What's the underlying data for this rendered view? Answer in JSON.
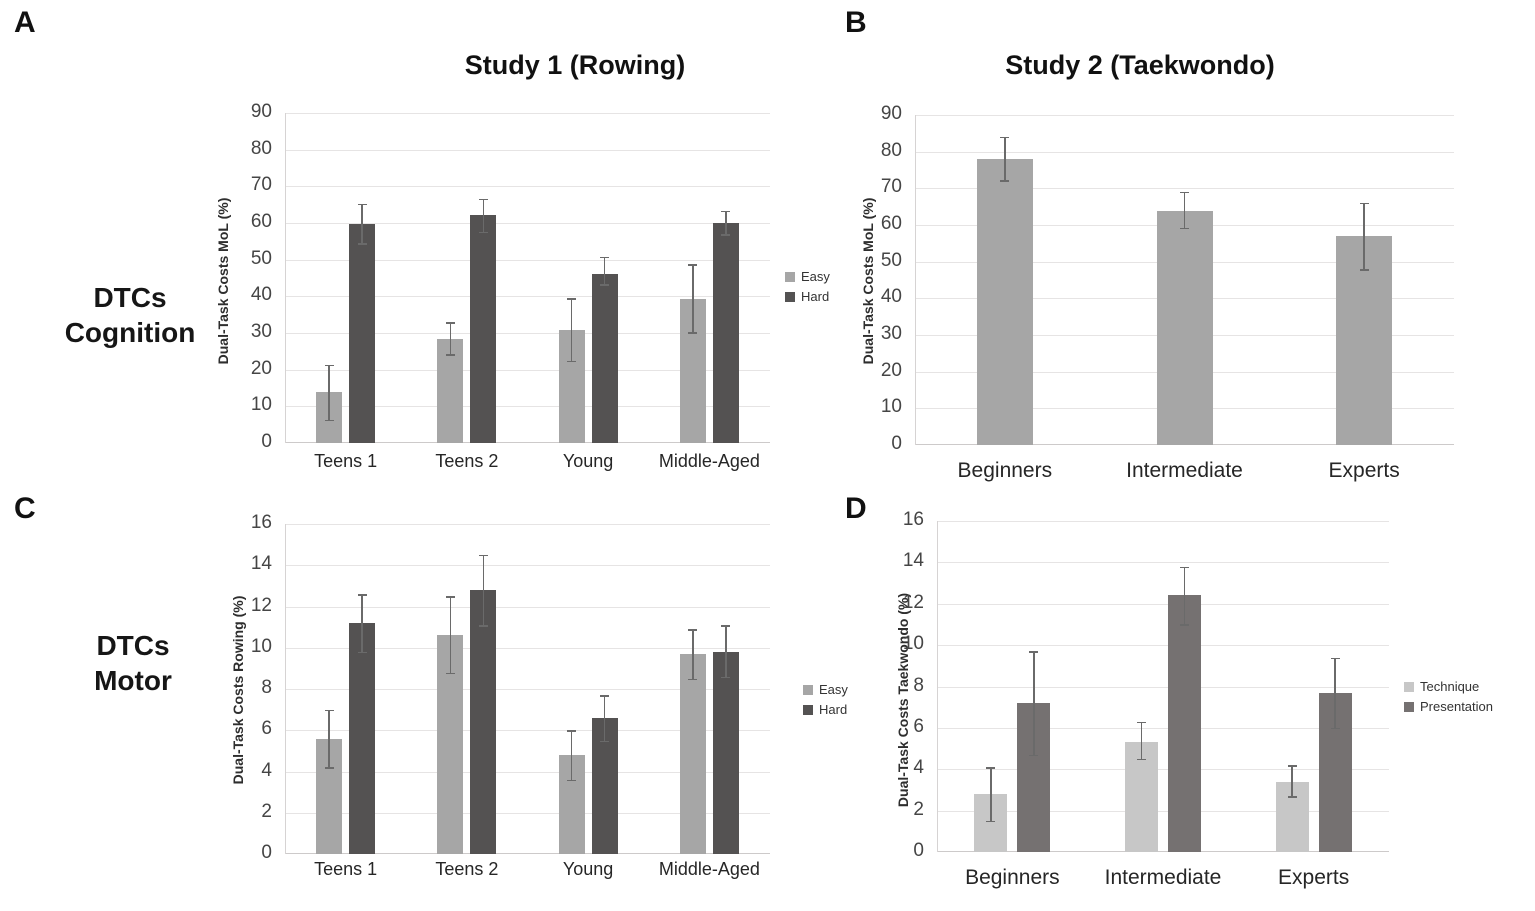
{
  "figure": {
    "background": "#ffffff",
    "row_labels": [
      {
        "line1": "DTCs",
        "line2": "Cognition"
      },
      {
        "line1": "DTCs",
        "line2": "Motor"
      }
    ]
  },
  "colors": {
    "easy": "#a6a6a6",
    "hard": "#545252",
    "technique": "#c7c7c7",
    "presentation": "#757171",
    "single_series": "#a6a6a6",
    "gridline": "#e6e4e4",
    "axis": "#cdcaca",
    "error_bar": "#6a6a6a"
  },
  "chart_data": [
    {
      "id": "A",
      "panel_letter": "A",
      "type": "bar",
      "title": "Study 1 (Rowing)",
      "xlabel": "",
      "ylabel": "Dual-Task Costs MoL (%)",
      "ylim": [
        0,
        90
      ],
      "ytick_step": 10,
      "grid": true,
      "legend_position": "right",
      "show_legend": true,
      "categories": [
        "Teens 1",
        "Teens 2",
        "Young",
        "Middle-Aged"
      ],
      "series": [
        {
          "name": "Easy",
          "color": "#a6a6a6",
          "values": [
            13.8,
            28.5,
            30.9,
            39.4
          ],
          "error_low": [
            6.4,
            24.2,
            22.4,
            30.2
          ],
          "error_high": [
            21.3,
            33.0,
            39.5,
            48.7
          ]
        },
        {
          "name": "Hard",
          "color": "#545252",
          "values": [
            59.8,
            62.1,
            46.0,
            60.1
          ],
          "error_low": [
            54.5,
            57.6,
            43.3,
            56.9
          ],
          "error_high": [
            65.3,
            66.6,
            50.8,
            63.4
          ]
        }
      ]
    },
    {
      "id": "B",
      "panel_letter": "B",
      "type": "bar",
      "title": "Study 2 (Taekwondo)",
      "xlabel": "",
      "ylabel": "Dual-Task Costs MoL (%)",
      "ylim": [
        0,
        90
      ],
      "ytick_step": 10,
      "grid": true,
      "legend_position": "none",
      "show_legend": false,
      "categories": [
        "Beginners",
        "Intermediate",
        "Experts"
      ],
      "series": [
        {
          "name": "",
          "color": "#a6a6a6",
          "values": [
            78.1,
            63.9,
            56.9
          ],
          "error_low": [
            72.2,
            59.2,
            47.9
          ],
          "error_high": [
            84.1,
            69.1,
            66.1
          ]
        }
      ]
    },
    {
      "id": "C",
      "panel_letter": "C",
      "type": "bar",
      "title": "",
      "xlabel": "",
      "ylabel": "Dual-Task Costs Rowing (%)",
      "ylim": [
        0,
        16
      ],
      "ytick_step": 2,
      "grid": true,
      "legend_position": "right",
      "show_legend": true,
      "categories": [
        "Teens 1",
        "Teens 2",
        "Young",
        "Middle-Aged"
      ],
      "series": [
        {
          "name": "Easy",
          "color": "#a6a6a6",
          "values": [
            5.6,
            10.6,
            4.8,
            9.7
          ],
          "error_low": [
            4.2,
            8.8,
            3.6,
            8.5
          ],
          "error_high": [
            7.0,
            12.5,
            6.0,
            10.9
          ]
        },
        {
          "name": "Hard",
          "color": "#545252",
          "values": [
            11.2,
            12.8,
            6.6,
            9.8
          ],
          "error_low": [
            9.8,
            11.1,
            5.5,
            8.6
          ],
          "error_high": [
            12.6,
            14.5,
            7.7,
            11.1
          ]
        }
      ]
    },
    {
      "id": "D",
      "panel_letter": "D",
      "type": "bar",
      "title": "",
      "xlabel": "",
      "ylabel": "Dual-Task Costs Taekwondo (%)",
      "ylim": [
        0,
        16
      ],
      "ytick_step": 2,
      "grid": true,
      "legend_position": "right",
      "show_legend": true,
      "categories": [
        "Beginners",
        "Intermediate",
        "Experts"
      ],
      "series": [
        {
          "name": "Technique",
          "color": "#c7c7c7",
          "values": [
            2.8,
            5.3,
            3.4
          ],
          "error_low": [
            1.5,
            4.5,
            2.7
          ],
          "error_high": [
            4.1,
            6.3,
            4.2
          ]
        },
        {
          "name": "Presentation",
          "color": "#757171",
          "values": [
            7.2,
            12.4,
            7.7
          ],
          "error_low": [
            4.7,
            11.0,
            6.0
          ],
          "error_high": [
            9.7,
            13.8,
            9.4
          ]
        }
      ]
    }
  ]
}
